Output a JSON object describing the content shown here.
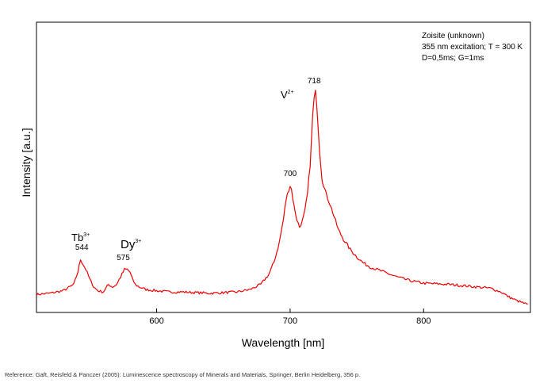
{
  "chart_data": {
    "type": "line",
    "xlabel": "Wavelength [nm]",
    "ylabel": "Intensity [a.u.]",
    "xlim": [
      510,
      880
    ],
    "ylim": [
      0,
      100
    ],
    "x_ticks": [
      600,
      700,
      800
    ],
    "y_ticks_labeled": false,
    "grid": false,
    "series": [
      {
        "color": "#ee0000",
        "points": [
          [
            510,
            4
          ],
          [
            520,
            4.5
          ],
          [
            530,
            5.5
          ],
          [
            538,
            8
          ],
          [
            541,
            13
          ],
          [
            543,
            18
          ],
          [
            545,
            16
          ],
          [
            547,
            14
          ],
          [
            550,
            10
          ],
          [
            553,
            7
          ],
          [
            556,
            5.5
          ],
          [
            560,
            5
          ],
          [
            564,
            8
          ],
          [
            567,
            7
          ],
          [
            570,
            8
          ],
          [
            573,
            11
          ],
          [
            576,
            14
          ],
          [
            578,
            14
          ],
          [
            580,
            13
          ],
          [
            582,
            10
          ],
          [
            584,
            8
          ],
          [
            587,
            7
          ],
          [
            592,
            6
          ],
          [
            600,
            5.5
          ],
          [
            610,
            5
          ],
          [
            620,
            5
          ],
          [
            640,
            4.5
          ],
          [
            660,
            5
          ],
          [
            670,
            6
          ],
          [
            678,
            8
          ],
          [
            684,
            12
          ],
          [
            688,
            17
          ],
          [
            692,
            25
          ],
          [
            695,
            34
          ],
          [
            697,
            42
          ],
          [
            699,
            46
          ],
          [
            700,
            47.5
          ],
          [
            701,
            46
          ],
          [
            703,
            39
          ],
          [
            705,
            34
          ],
          [
            707,
            31
          ],
          [
            709,
            33
          ],
          [
            711,
            37
          ],
          [
            713,
            44
          ],
          [
            715,
            56
          ],
          [
            717,
            76
          ],
          [
            718,
            82
          ],
          [
            719,
            84.5
          ],
          [
            720,
            80
          ],
          [
            722,
            62
          ],
          [
            724,
            50
          ],
          [
            727,
            44
          ],
          [
            730,
            40
          ],
          [
            733,
            35
          ],
          [
            736,
            30
          ],
          [
            740,
            26
          ],
          [
            745,
            22
          ],
          [
            750,
            19
          ],
          [
            755,
            16.5
          ],
          [
            760,
            15
          ],
          [
            770,
            13
          ],
          [
            780,
            11
          ],
          [
            790,
            9.5
          ],
          [
            800,
            8.5
          ],
          [
            820,
            8
          ],
          [
            840,
            7
          ],
          [
            850,
            6.5
          ],
          [
            858,
            5
          ],
          [
            864,
            3
          ],
          [
            870,
            1.5
          ],
          [
            878,
            0
          ]
        ]
      }
    ],
    "peak_labels": [
      {
        "x": 544,
        "text": "544"
      },
      {
        "x": 575,
        "text": "575"
      },
      {
        "x": 700,
        "text": "700"
      },
      {
        "x": 718,
        "text": "718"
      }
    ],
    "ion_labels": [
      {
        "base": "Tb",
        "sup": "3+"
      },
      {
        "base": "Dy",
        "sup": "3+"
      },
      {
        "base": "V",
        "sup": "2+"
      }
    ],
    "info_box": {
      "line1": "Zoisite (unknown)",
      "line2": "355 nm excitation; T = 300 K",
      "line3": "D=0,5ms; G=1ms"
    }
  },
  "reference": "Reference: Gaft, Reisfeld & Panczer (2005): Luminescence spectroscopy of Minerals and Materials, Springer, Berlin Heidelberg, 356 p."
}
